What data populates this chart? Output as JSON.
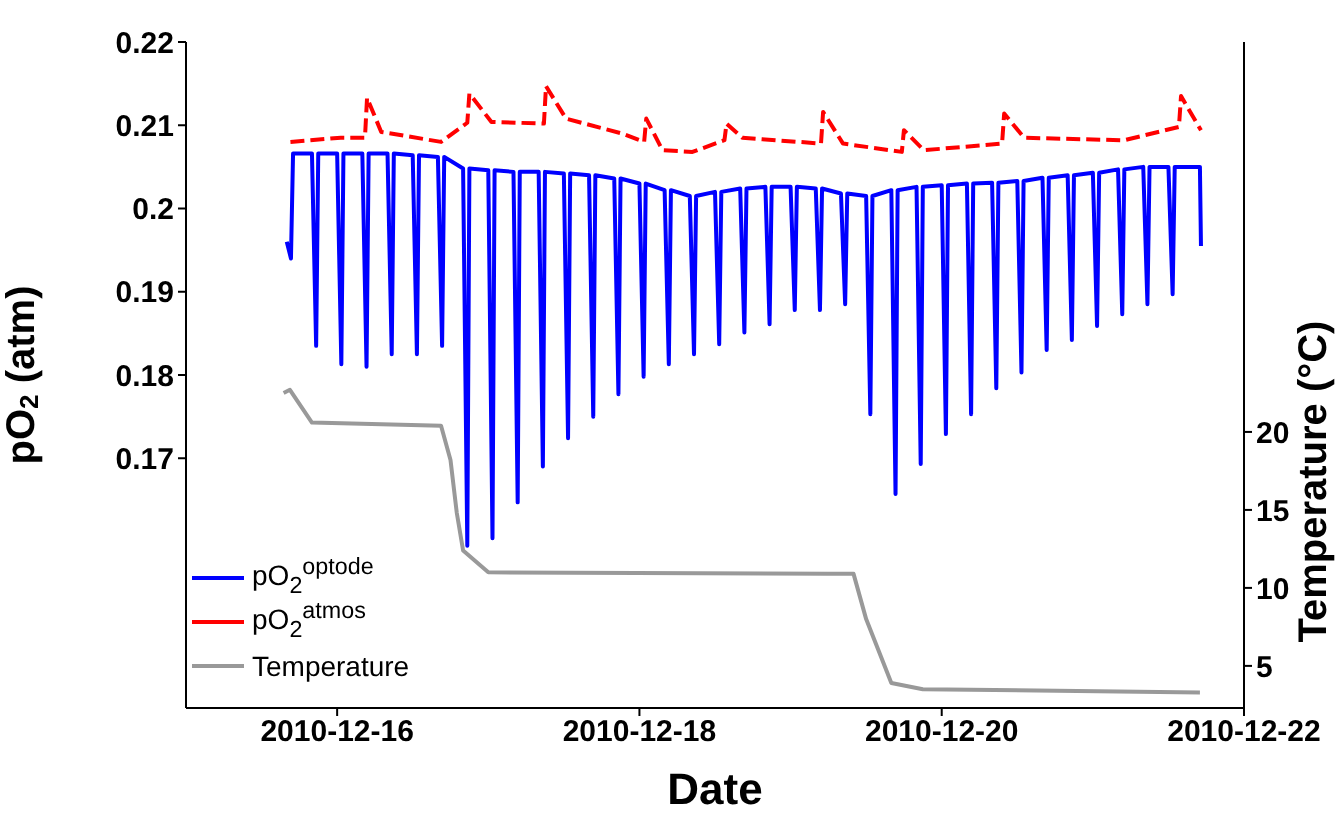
{
  "chart_data": {
    "type": "line",
    "xlabel": "Date",
    "ylabel": "pO$_{2}$ (atm)",
    "y2label": "Temperature (°C)",
    "xlim": [
      "2010-12-15",
      "2010-12-22"
    ],
    "xticks": [
      "2010-12-16",
      "2010-12-18",
      "2010-12-20",
      "2010-12-22"
    ],
    "ylim": [
      0.14,
      0.22
    ],
    "yticks": [
      0.17,
      0.18,
      0.19,
      0.2,
      0.21,
      0.22
    ],
    "y2lim": [
      2.3,
      45
    ],
    "y2ticks": [
      5,
      10,
      15,
      20
    ],
    "legend": "bottom left",
    "marker": "none",
    "series": [
      {
        "name": "pO$_{2}$$^{optode}$",
        "color": "#0000ff",
        "line_style": "solid",
        "x": [
          "2010-12-15T16:00",
          "2010-12-15T16:40",
          "2010-12-15T17:00",
          "2010-12-15T20:00",
          "2010-12-15T20:40",
          "2010-12-15T21:00",
          "2010-12-16T00:00",
          "2010-12-16T00:40",
          "2010-12-16T01:00",
          "2010-12-16T04:00",
          "2010-12-16T04:40",
          "2010-12-16T05:00",
          "2010-12-16T08:00",
          "2010-12-16T08:40",
          "2010-12-16T09:00",
          "2010-12-16T12:00",
          "2010-12-16T12:40",
          "2010-12-16T13:00",
          "2010-12-16T16:00",
          "2010-12-16T16:40",
          "2010-12-16T17:00",
          "2010-12-16T20:00",
          "2010-12-16T20:40",
          "2010-12-16T21:00",
          "2010-12-17T00:00",
          "2010-12-17T00:40",
          "2010-12-17T01:00",
          "2010-12-17T04:00",
          "2010-12-17T04:40",
          "2010-12-17T05:00",
          "2010-12-17T08:00",
          "2010-12-17T08:40",
          "2010-12-17T09:00",
          "2010-12-17T12:00",
          "2010-12-17T12:40",
          "2010-12-17T13:00",
          "2010-12-17T16:00",
          "2010-12-17T16:40",
          "2010-12-17T17:00",
          "2010-12-17T20:00",
          "2010-12-17T20:40",
          "2010-12-17T21:00",
          "2010-12-18T00:00",
          "2010-12-18T00:40",
          "2010-12-18T01:00",
          "2010-12-18T04:00",
          "2010-12-18T04:40",
          "2010-12-18T05:00",
          "2010-12-18T08:00",
          "2010-12-18T08:40",
          "2010-12-18T09:00",
          "2010-12-18T12:00",
          "2010-12-18T12:40",
          "2010-12-18T13:00",
          "2010-12-18T16:00",
          "2010-12-18T16:40",
          "2010-12-18T17:00",
          "2010-12-18T20:00",
          "2010-12-18T20:40",
          "2010-12-18T21:00",
          "2010-12-19T00:00",
          "2010-12-19T00:40",
          "2010-12-19T01:00",
          "2010-12-19T04:00",
          "2010-12-19T04:40",
          "2010-12-19T05:00",
          "2010-12-19T08:00",
          "2010-12-19T08:40",
          "2010-12-19T09:00",
          "2010-12-19T12:00",
          "2010-12-19T12:40",
          "2010-12-19T13:00",
          "2010-12-19T16:00",
          "2010-12-19T16:40",
          "2010-12-19T17:00",
          "2010-12-19T20:00",
          "2010-12-19T20:40",
          "2010-12-19T21:00",
          "2010-12-20T00:00",
          "2010-12-20T00:40",
          "2010-12-20T01:00",
          "2010-12-20T04:00",
          "2010-12-20T04:40",
          "2010-12-20T05:00",
          "2010-12-20T08:00",
          "2010-12-20T08:40",
          "2010-12-20T09:00",
          "2010-12-20T12:00",
          "2010-12-20T12:40",
          "2010-12-20T13:00",
          "2010-12-20T16:00",
          "2010-12-20T16:40",
          "2010-12-20T17:00",
          "2010-12-20T20:00",
          "2010-12-20T20:40",
          "2010-12-20T21:00",
          "2010-12-21T00:00",
          "2010-12-21T00:40",
          "2010-12-21T01:00",
          "2010-12-21T04:00",
          "2010-12-21T04:40",
          "2010-12-21T05:00",
          "2010-12-21T08:00",
          "2010-12-21T08:40",
          "2010-12-21T09:00",
          "2010-12-21T12:00",
          "2010-12-21T12:40",
          "2010-12-21T13:00",
          "2010-12-21T17:00",
          "2010-12-21T17:10"
        ],
        "values": [
          0.196,
          0.194,
          0.2066,
          0.2066,
          0.1835,
          0.2066,
          0.2066,
          0.1813,
          0.2066,
          0.2066,
          0.181,
          0.2066,
          0.2066,
          0.1825,
          0.2066,
          0.2064,
          0.1825,
          0.2064,
          0.2062,
          0.1835,
          0.2062,
          0.2048,
          0.1595,
          0.2048,
          0.2046,
          0.1604,
          0.2046,
          0.2044,
          0.1647,
          0.2044,
          0.2044,
          0.169,
          0.2044,
          0.2042,
          0.1724,
          0.2042,
          0.204,
          0.175,
          0.204,
          0.2036,
          0.1777,
          0.2036,
          0.203,
          0.1798,
          0.203,
          0.2022,
          0.1813,
          0.2022,
          0.2015,
          0.1825,
          0.2015,
          0.202,
          0.1837,
          0.202,
          0.2024,
          0.1851,
          0.2024,
          0.2026,
          0.1861,
          0.2026,
          0.2026,
          0.1878,
          0.2026,
          0.2024,
          0.1878,
          0.2024,
          0.2018,
          0.1885,
          0.2018,
          0.2015,
          0.1753,
          0.2015,
          0.2022,
          0.1657,
          0.2022,
          0.2026,
          0.1693,
          0.2026,
          0.2028,
          0.1729,
          0.2028,
          0.203,
          0.1753,
          0.203,
          0.2031,
          0.1784,
          0.2031,
          0.2033,
          0.1803,
          0.2033,
          0.2037,
          0.183,
          0.2037,
          0.204,
          0.1842,
          0.204,
          0.2043,
          0.1859,
          0.2043,
          0.2047,
          0.1873,
          0.2047,
          0.205,
          0.1885,
          0.205,
          0.205,
          0.1897,
          0.205,
          0.205,
          0.1955
        ]
      },
      {
        "name": "pO$_{2}$$^{atmos}$",
        "color": "#ff0000",
        "line_style": "dashed",
        "x": [
          "2010-12-15T16:35",
          "2010-12-16T00:35",
          "2010-12-16T04:25",
          "2010-12-16T04:45",
          "2010-12-16T07:00",
          "2010-12-16T16:30",
          "2010-12-16T20:40",
          "2010-12-16T21:00",
          "2010-12-17T00:30",
          "2010-12-17T08:50",
          "2010-12-17T09:10",
          "2010-12-17T12:20",
          "2010-12-17T21:15",
          "2010-12-18T00:45",
          "2010-12-18T01:05",
          "2010-12-18T03:40",
          "2010-12-18T08:25",
          "2010-12-18T13:30",
          "2010-12-18T13:50",
          "2010-12-18T16:20",
          "2010-12-19T04:50",
          "2010-12-19T05:10",
          "2010-12-19T08:20",
          "2010-12-19T17:40",
          "2010-12-19T18:00",
          "2010-12-19T21:10",
          "2010-12-20T09:35",
          "2010-12-20T09:55",
          "2010-12-20T13:05",
          "2010-12-21T05:00",
          "2010-12-21T13:40",
          "2010-12-21T14:00",
          "2010-12-21T17:10"
        ],
        "values": [
          0.208,
          0.2085,
          0.2085,
          0.2133,
          0.2092,
          0.208,
          0.2103,
          0.2138,
          0.2104,
          0.2102,
          0.2147,
          0.2108,
          0.209,
          0.208,
          0.2108,
          0.207,
          0.2068,
          0.2082,
          0.2102,
          0.2085,
          0.2078,
          0.2116,
          0.2078,
          0.2068,
          0.2094,
          0.207,
          0.2078,
          0.2114,
          0.2085,
          0.2082,
          0.2098,
          0.2135,
          0.2094
        ]
      },
      {
        "name": "Temperature",
        "color": "#999999",
        "line_style": "solid",
        "axis": "y2",
        "x": [
          "2010-12-15T15:30",
          "2010-12-15T16:30",
          "2010-12-15T20:00",
          "2010-12-16T16:30",
          "2010-12-16T18:00",
          "2010-12-16T19:00",
          "2010-12-16T20:00",
          "2010-12-17T00:00",
          "2010-12-19T06:00",
          "2010-12-19T10:00",
          "2010-12-19T12:00",
          "2010-12-19T16:00",
          "2010-12-19T21:00",
          "2010-12-21T17:00"
        ],
        "values": [
          22.5,
          22.7,
          20.6,
          20.4,
          18.2,
          14.8,
          12.4,
          11.0,
          10.9,
          10.9,
          8.0,
          3.9,
          3.5,
          3.3
        ]
      }
    ]
  }
}
